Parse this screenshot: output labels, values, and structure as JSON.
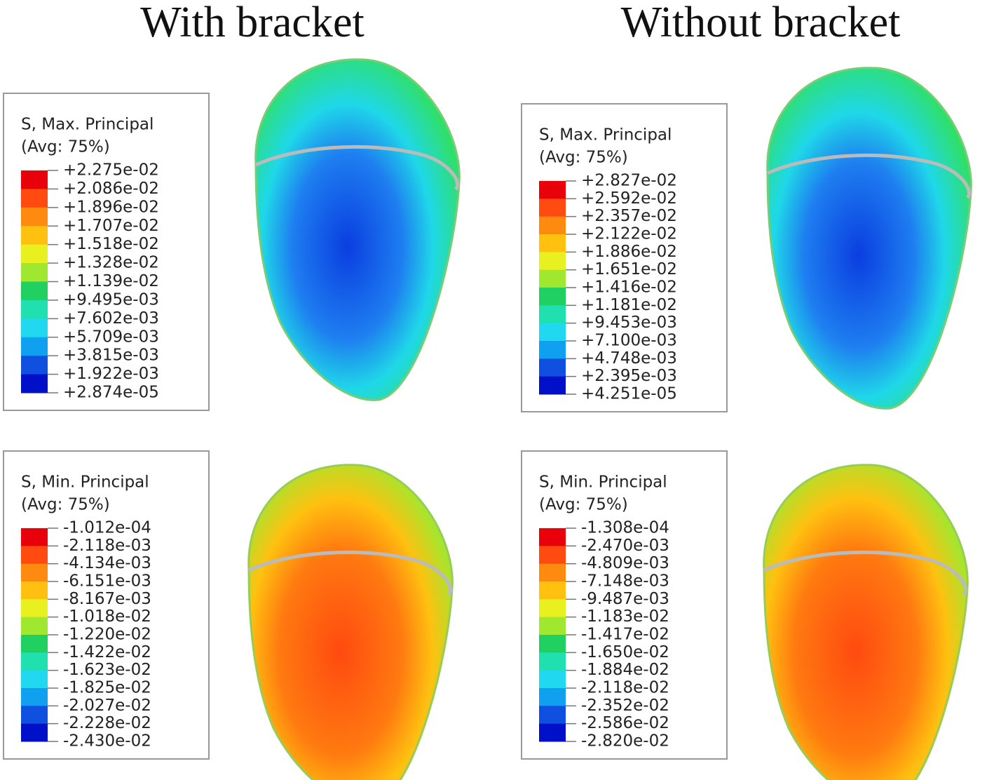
{
  "columns": [
    {
      "title": "With bracket",
      "panels": [
        {
          "legend_title": "S, Max. Principal",
          "legend_subtitle": "(Avg: 75%)",
          "labels": [
            "+2.275e-02",
            "+2.086e-02",
            "+1.896e-02",
            "+1.707e-02",
            "+1.518e-02",
            "+1.328e-02",
            "+1.139e-02",
            "+9.495e-03",
            "+7.602e-03",
            "+5.709e-03",
            "+3.815e-03",
            "+1.922e-03",
            "+2.874e-05"
          ]
        },
        {
          "legend_title": "S, Min. Principal",
          "legend_subtitle": "(Avg: 75%)",
          "labels": [
            "-1.012e-04",
            "-2.118e-03",
            "-4.134e-03",
            "-6.151e-03",
            "-8.167e-03",
            "-1.018e-02",
            "-1.220e-02",
            "-1.422e-02",
            "-1.623e-02",
            "-1.825e-02",
            "-2.027e-02",
            "-2.228e-02",
            "-2.430e-02"
          ]
        }
      ]
    },
    {
      "title": "Without bracket",
      "panels": [
        {
          "legend_title": "S, Max. Principal",
          "legend_subtitle": "(Avg: 75%)",
          "labels": [
            "+2.827e-02",
            "+2.592e-02",
            "+2.357e-02",
            "+2.122e-02",
            "+1.886e-02",
            "+1.651e-02",
            "+1.416e-02",
            "+1.181e-02",
            "+9.453e-03",
            "+7.100e-03",
            "+4.748e-03",
            "+2.395e-03",
            "+4.251e-05"
          ]
        },
        {
          "legend_title": "S, Min. Principal",
          "legend_subtitle": "(Avg: 75%)",
          "labels": [
            "-1.308e-04",
            "-2.470e-03",
            "-4.809e-03",
            "-7.148e-03",
            "-9.487e-03",
            "-1.183e-02",
            "-1.417e-02",
            "-1.650e-02",
            "-1.884e-02",
            "-2.118e-02",
            "-2.352e-02",
            "-2.586e-02",
            "-2.820e-02"
          ]
        }
      ]
    }
  ]
}
